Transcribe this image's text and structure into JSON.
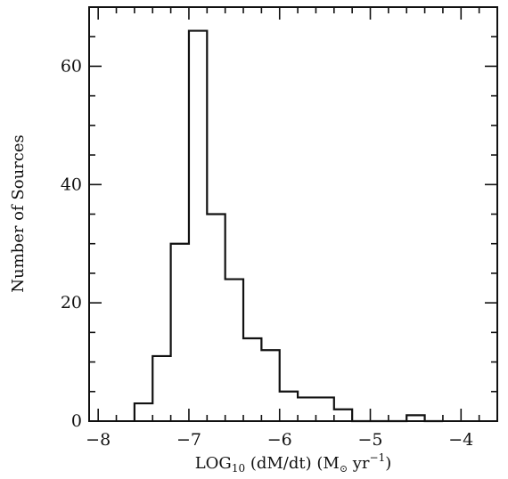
{
  "chart_data": {
    "type": "histogram",
    "title": "",
    "xlabel": {
      "prefix": "LOG",
      "prefix_subscript": "10",
      "rest_a": " (dM/dt) (M",
      "sun_symbol": "⊙",
      "rest_b": " yr",
      "superscript": "−1",
      "rest_c": ")"
    },
    "ylabel": "Number of Sources",
    "xlim": [
      -8.1,
      -3.6
    ],
    "ylim": [
      0,
      70
    ],
    "x_ticks": [
      {
        "value": -8,
        "label": "−8"
      },
      {
        "value": -7,
        "label": "−7"
      },
      {
        "value": -6,
        "label": "−6"
      },
      {
        "value": -5,
        "label": "−5"
      },
      {
        "value": -4,
        "label": "−4"
      }
    ],
    "x_minor_step": 0.2,
    "y_ticks": [
      {
        "value": 0,
        "label": "0"
      },
      {
        "value": 20,
        "label": "20"
      },
      {
        "value": 40,
        "label": "40"
      },
      {
        "value": 60,
        "label": "60"
      }
    ],
    "y_minor_step": 5,
    "grid": false,
    "bin_width": 0.2,
    "bins": [
      {
        "x": -7.6,
        "count": 3
      },
      {
        "x": -7.4,
        "count": 11
      },
      {
        "x": -7.2,
        "count": 30
      },
      {
        "x": -7.0,
        "count": 66
      },
      {
        "x": -6.8,
        "count": 35
      },
      {
        "x": -6.6,
        "count": 24
      },
      {
        "x": -6.4,
        "count": 14
      },
      {
        "x": -6.2,
        "count": 12
      },
      {
        "x": -6.0,
        "count": 5
      },
      {
        "x": -5.8,
        "count": 4
      },
      {
        "x": -5.6,
        "count": 4
      },
      {
        "x": -5.4,
        "count": 2
      },
      {
        "x": -5.2,
        "count": 0
      },
      {
        "x": -5.0,
        "count": 0
      },
      {
        "x": -4.8,
        "count": 0
      },
      {
        "x": -4.6,
        "count": 1
      },
      {
        "x": -4.4,
        "count": 0
      }
    ]
  }
}
